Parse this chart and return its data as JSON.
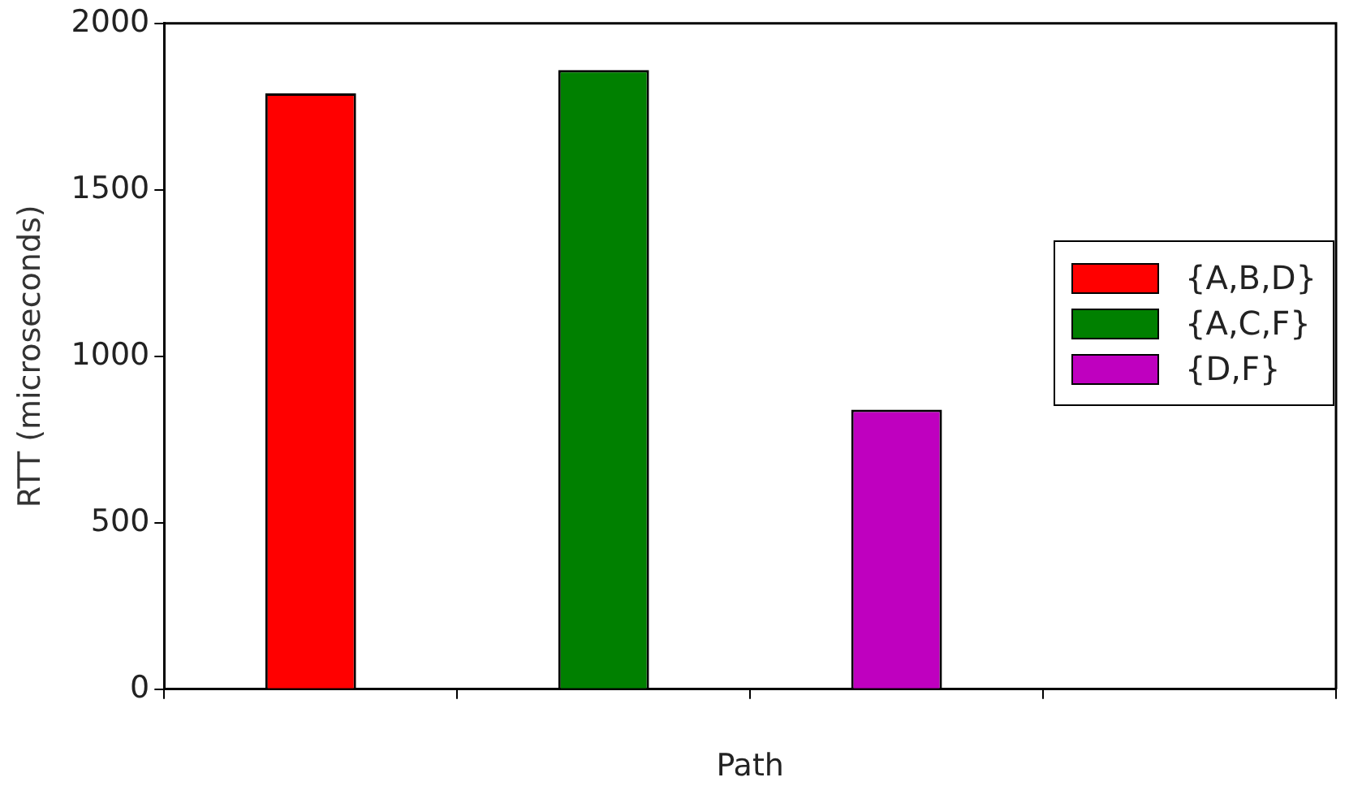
{
  "chart_data": {
    "type": "bar",
    "xlabel": "Path",
    "ylabel": "RTT (microseconds)",
    "categories": [
      null,
      null,
      null,
      null
    ],
    "series": [
      {
        "name": "{A,B,D}",
        "color": "#ff0000",
        "values": [
          1790,
          null,
          null,
          null
        ]
      },
      {
        "name": "{A,C,F}",
        "color": "#008000",
        "values": [
          null,
          1860,
          null,
          null
        ]
      },
      {
        "name": "{D,F}",
        "color": "#bf00bf",
        "values": [
          null,
          null,
          840,
          null
        ]
      }
    ],
    "ylim": [
      0,
      2000
    ],
    "yticks": [
      0,
      500,
      1000,
      1500,
      2000
    ],
    "grid": false,
    "legend": "right"
  }
}
